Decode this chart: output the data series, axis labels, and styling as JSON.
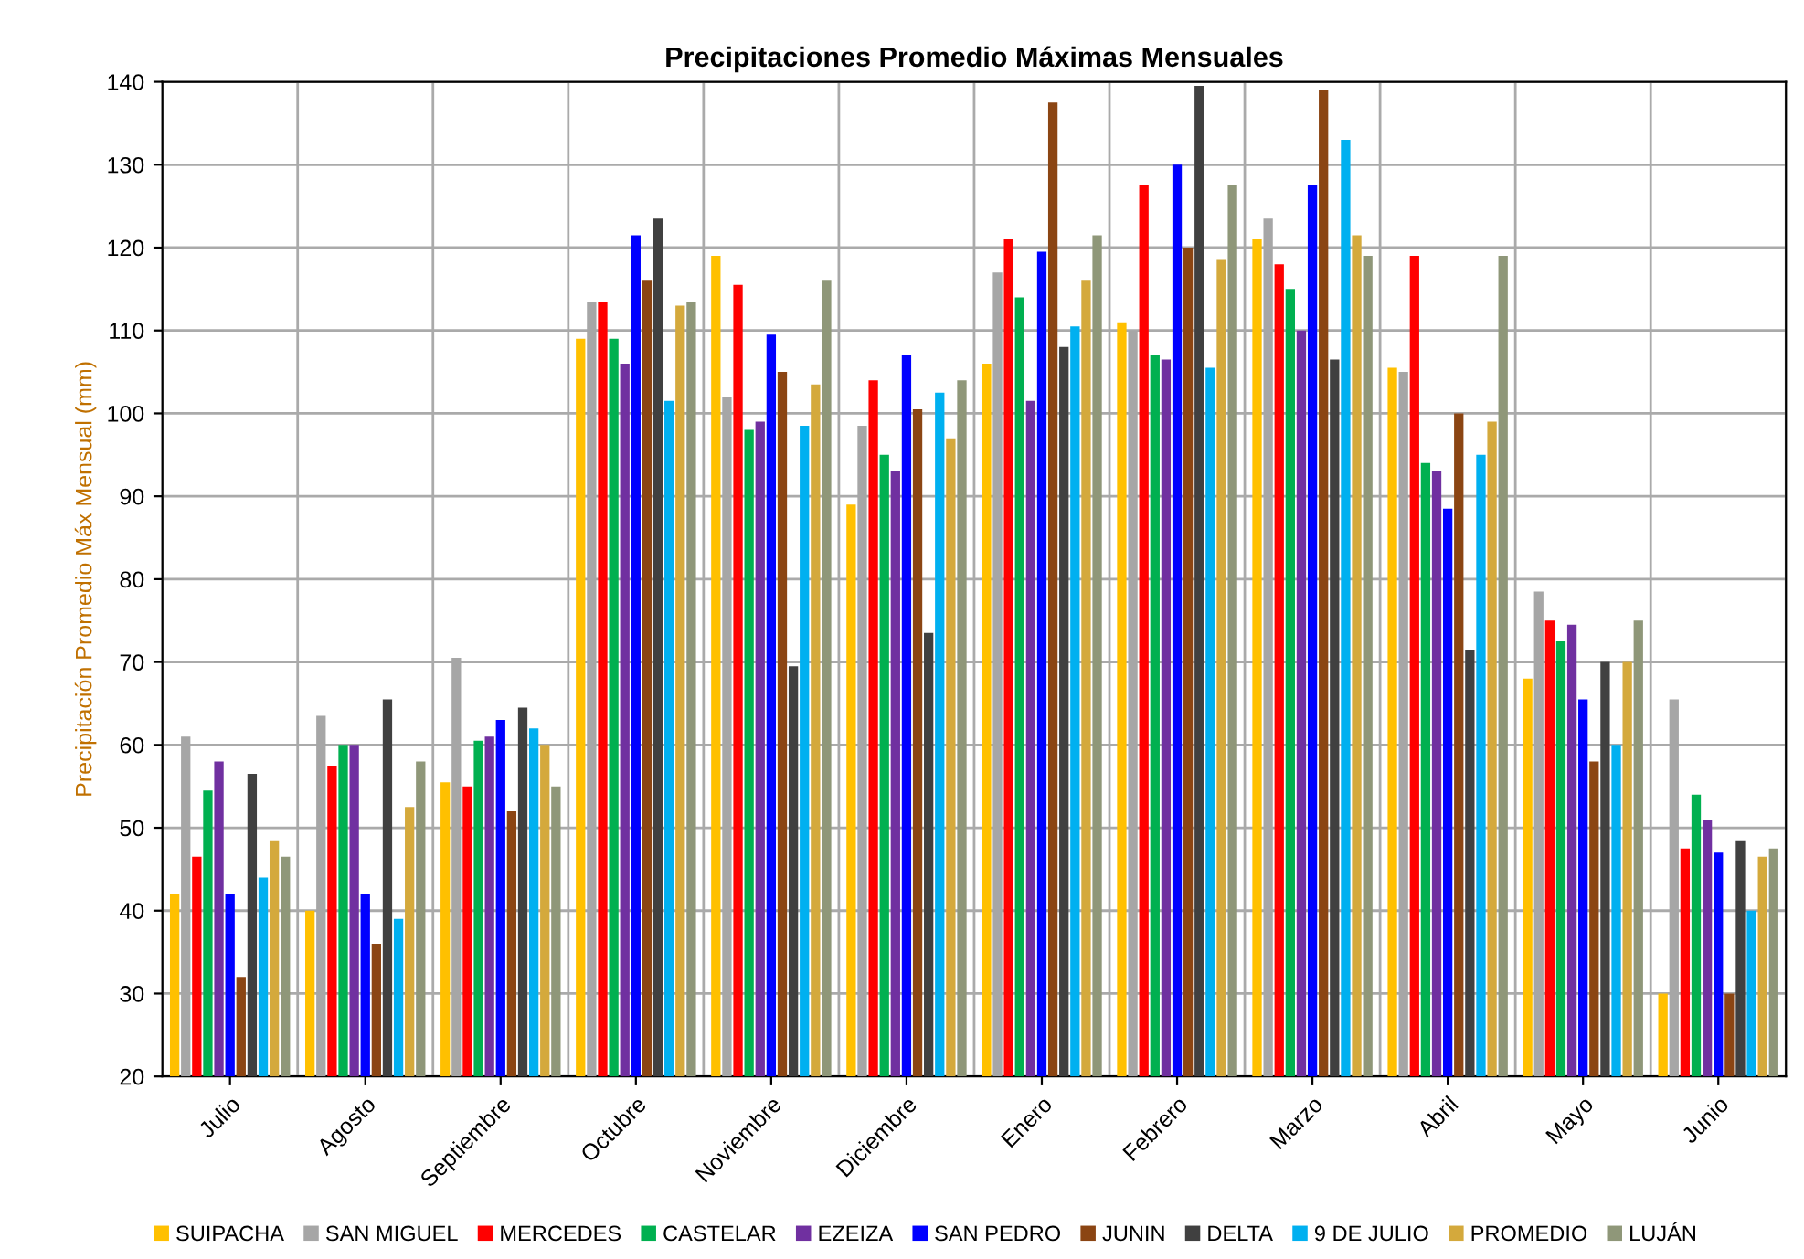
{
  "chart_data": {
    "type": "bar",
    "title": "Precipitaciones Promedio Máximas Mensuales",
    "ylabel": "Precipitación Promedio Máx Mensual (mm)",
    "categories": [
      "Julio",
      "Agosto",
      "Septiembre",
      "Octubre",
      "Noviembre",
      "Diciembre",
      "Enero",
      "Febrero",
      "Marzo",
      "Abril",
      "Mayo",
      "Junio"
    ],
    "series": [
      {
        "name": "SUIPACHA",
        "color": "#ffc000",
        "values": [
          42,
          40,
          55.5,
          109,
          119,
          89,
          106,
          111,
          121,
          105.5,
          68,
          30
        ]
      },
      {
        "name": "SAN MIGUEL",
        "color": "#a6a6a6",
        "values": [
          61,
          63.5,
          70.5,
          113.5,
          102,
          98.5,
          117,
          110,
          123.5,
          105,
          78.5,
          65.5
        ]
      },
      {
        "name": "MERCEDES",
        "color": "#ff0000",
        "values": [
          46.5,
          57.5,
          55,
          113.5,
          115.5,
          104,
          121,
          127.5,
          118,
          119,
          75,
          47.5
        ]
      },
      {
        "name": "CASTELAR",
        "color": "#00b050",
        "values": [
          54.5,
          60,
          60.5,
          109,
          98,
          95,
          114,
          107,
          115,
          94,
          72.5,
          54
        ]
      },
      {
        "name": "EZEIZA",
        "color": "#7030a0",
        "values": [
          58,
          60,
          61,
          106,
          99,
          93,
          101.5,
          106.5,
          110,
          93,
          74.5,
          51
        ]
      },
      {
        "name": "SAN PEDRO",
        "color": "#0000ff",
        "values": [
          42,
          42,
          63,
          121.5,
          109.5,
          107,
          119.5,
          130,
          127.5,
          88.5,
          65.5,
          47
        ]
      },
      {
        "name": "JUNIN",
        "color": "#8b4513",
        "values": [
          32,
          36,
          52,
          116,
          105,
          100.5,
          137.5,
          120,
          139,
          100,
          58,
          30
        ]
      },
      {
        "name": "DELTA",
        "color": "#404040",
        "values": [
          56.5,
          65.5,
          64.5,
          123.5,
          69.5,
          73.5,
          108,
          139.5,
          106.5,
          71.5,
          70,
          48.5
        ]
      },
      {
        "name": "9 DE JULIO",
        "color": "#00b0f0",
        "values": [
          44,
          39,
          62,
          101.5,
          98.5,
          102.5,
          110.5,
          105.5,
          133,
          95,
          60,
          40
        ]
      },
      {
        "name": "PROMEDIO",
        "color": "#d4a93c",
        "values": [
          48.5,
          52.5,
          60,
          113,
          103.5,
          97,
          116,
          118.5,
          121.5,
          99,
          70,
          46.5
        ]
      },
      {
        "name": "LUJÁN",
        "color": "#8f9779",
        "values": [
          46.5,
          58,
          55,
          113.5,
          116,
          104,
          121.5,
          127.5,
          119,
          119,
          75,
          47.5
        ]
      }
    ],
    "ylim": [
      20,
      140
    ],
    "yticks": [
      20,
      30,
      40,
      50,
      60,
      70,
      80,
      90,
      100,
      110,
      120,
      130,
      140
    ],
    "grid": true,
    "legend": "bottom"
  }
}
